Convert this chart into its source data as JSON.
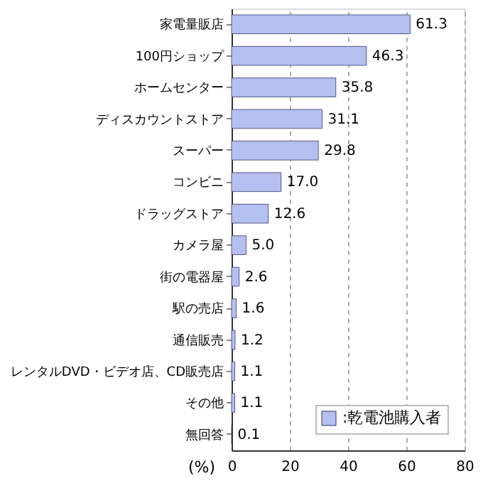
{
  "chart_data": {
    "type": "bar",
    "orientation": "horizontal",
    "categories": [
      "家電量販店",
      "100円ショップ",
      "ホームセンター",
      "ディスカウントストア",
      "スーパー",
      "コンビニ",
      "ドラッグストア",
      "カメラ屋",
      "街の電器屋",
      "駅の売店",
      "通信販売",
      "レンタルDVD・ビデオ店、CD販売店",
      "その他",
      "無回答"
    ],
    "series": [
      {
        "name": ":乾電池購入者",
        "color": "#b4c0f0",
        "values": [
          61.3,
          46.3,
          35.8,
          31.1,
          29.8,
          17.0,
          12.6,
          5.0,
          2.6,
          1.6,
          1.2,
          1.1,
          1.1,
          0.1
        ]
      }
    ],
    "value_labels": [
      "61.3",
      "46.3",
      "35.8",
      "31.1",
      "29.8",
      "17.0",
      "12.6",
      "5.0",
      "2.6",
      "1.6",
      "1.2",
      "1.1",
      "1.1",
      "0.1"
    ],
    "xlabel": "(%)",
    "xlim": [
      0,
      80
    ],
    "xticks": [
      0,
      20,
      40,
      60,
      80
    ],
    "grid": "x",
    "legend": "bottom right"
  }
}
